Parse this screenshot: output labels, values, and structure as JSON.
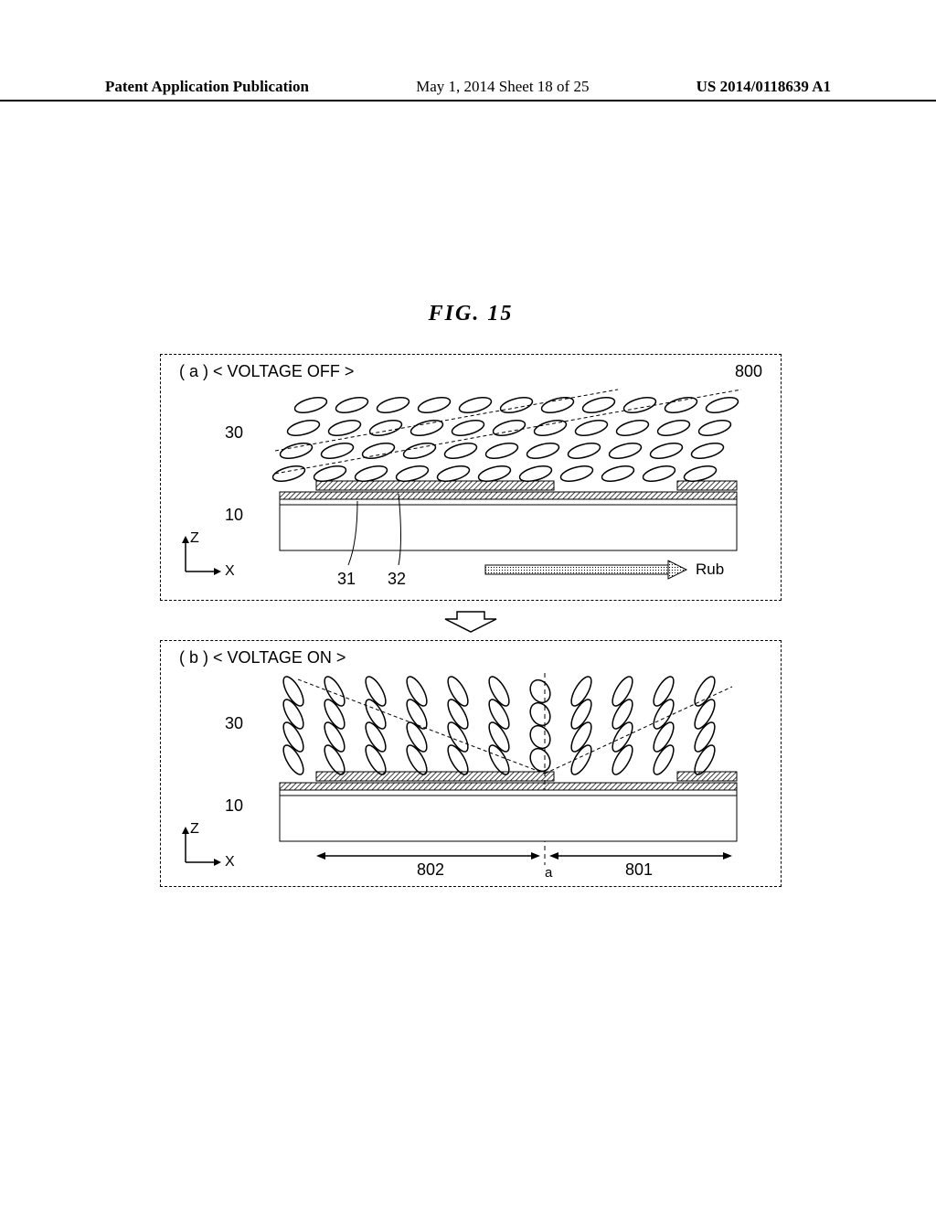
{
  "header": {
    "left": "Patent Application Publication",
    "center": "May 1, 2014  Sheet 18 of 25",
    "right": "US 2014/0118639 A1"
  },
  "figure": {
    "title": "FIG.  15",
    "panelA": {
      "label": "( a )  < VOLTAGE OFF >",
      "ref800": "800",
      "ref30": "30",
      "ref10": "10",
      "ref31": "31",
      "ref32": "32",
      "rub": "Rub",
      "zLabel": "Z",
      "xLabel": "X"
    },
    "panelB": {
      "label": "( b )  < VOLTAGE ON >",
      "ref30": "30",
      "ref10": "10",
      "ref801": "801",
      "ref802": "802",
      "refA": "a",
      "zLabel": "Z",
      "xLabel": "X"
    },
    "colors": {
      "stroke": "#000000",
      "hatchFill": "#808080",
      "background": "#ffffff"
    },
    "ellipses": {
      "rows": 4,
      "perRow": 11,
      "rx": 18,
      "ry": 7,
      "tiltOffDeg": -15,
      "tiltOnLeftDeg": 60,
      "tiltOnRightDeg": -60
    }
  }
}
